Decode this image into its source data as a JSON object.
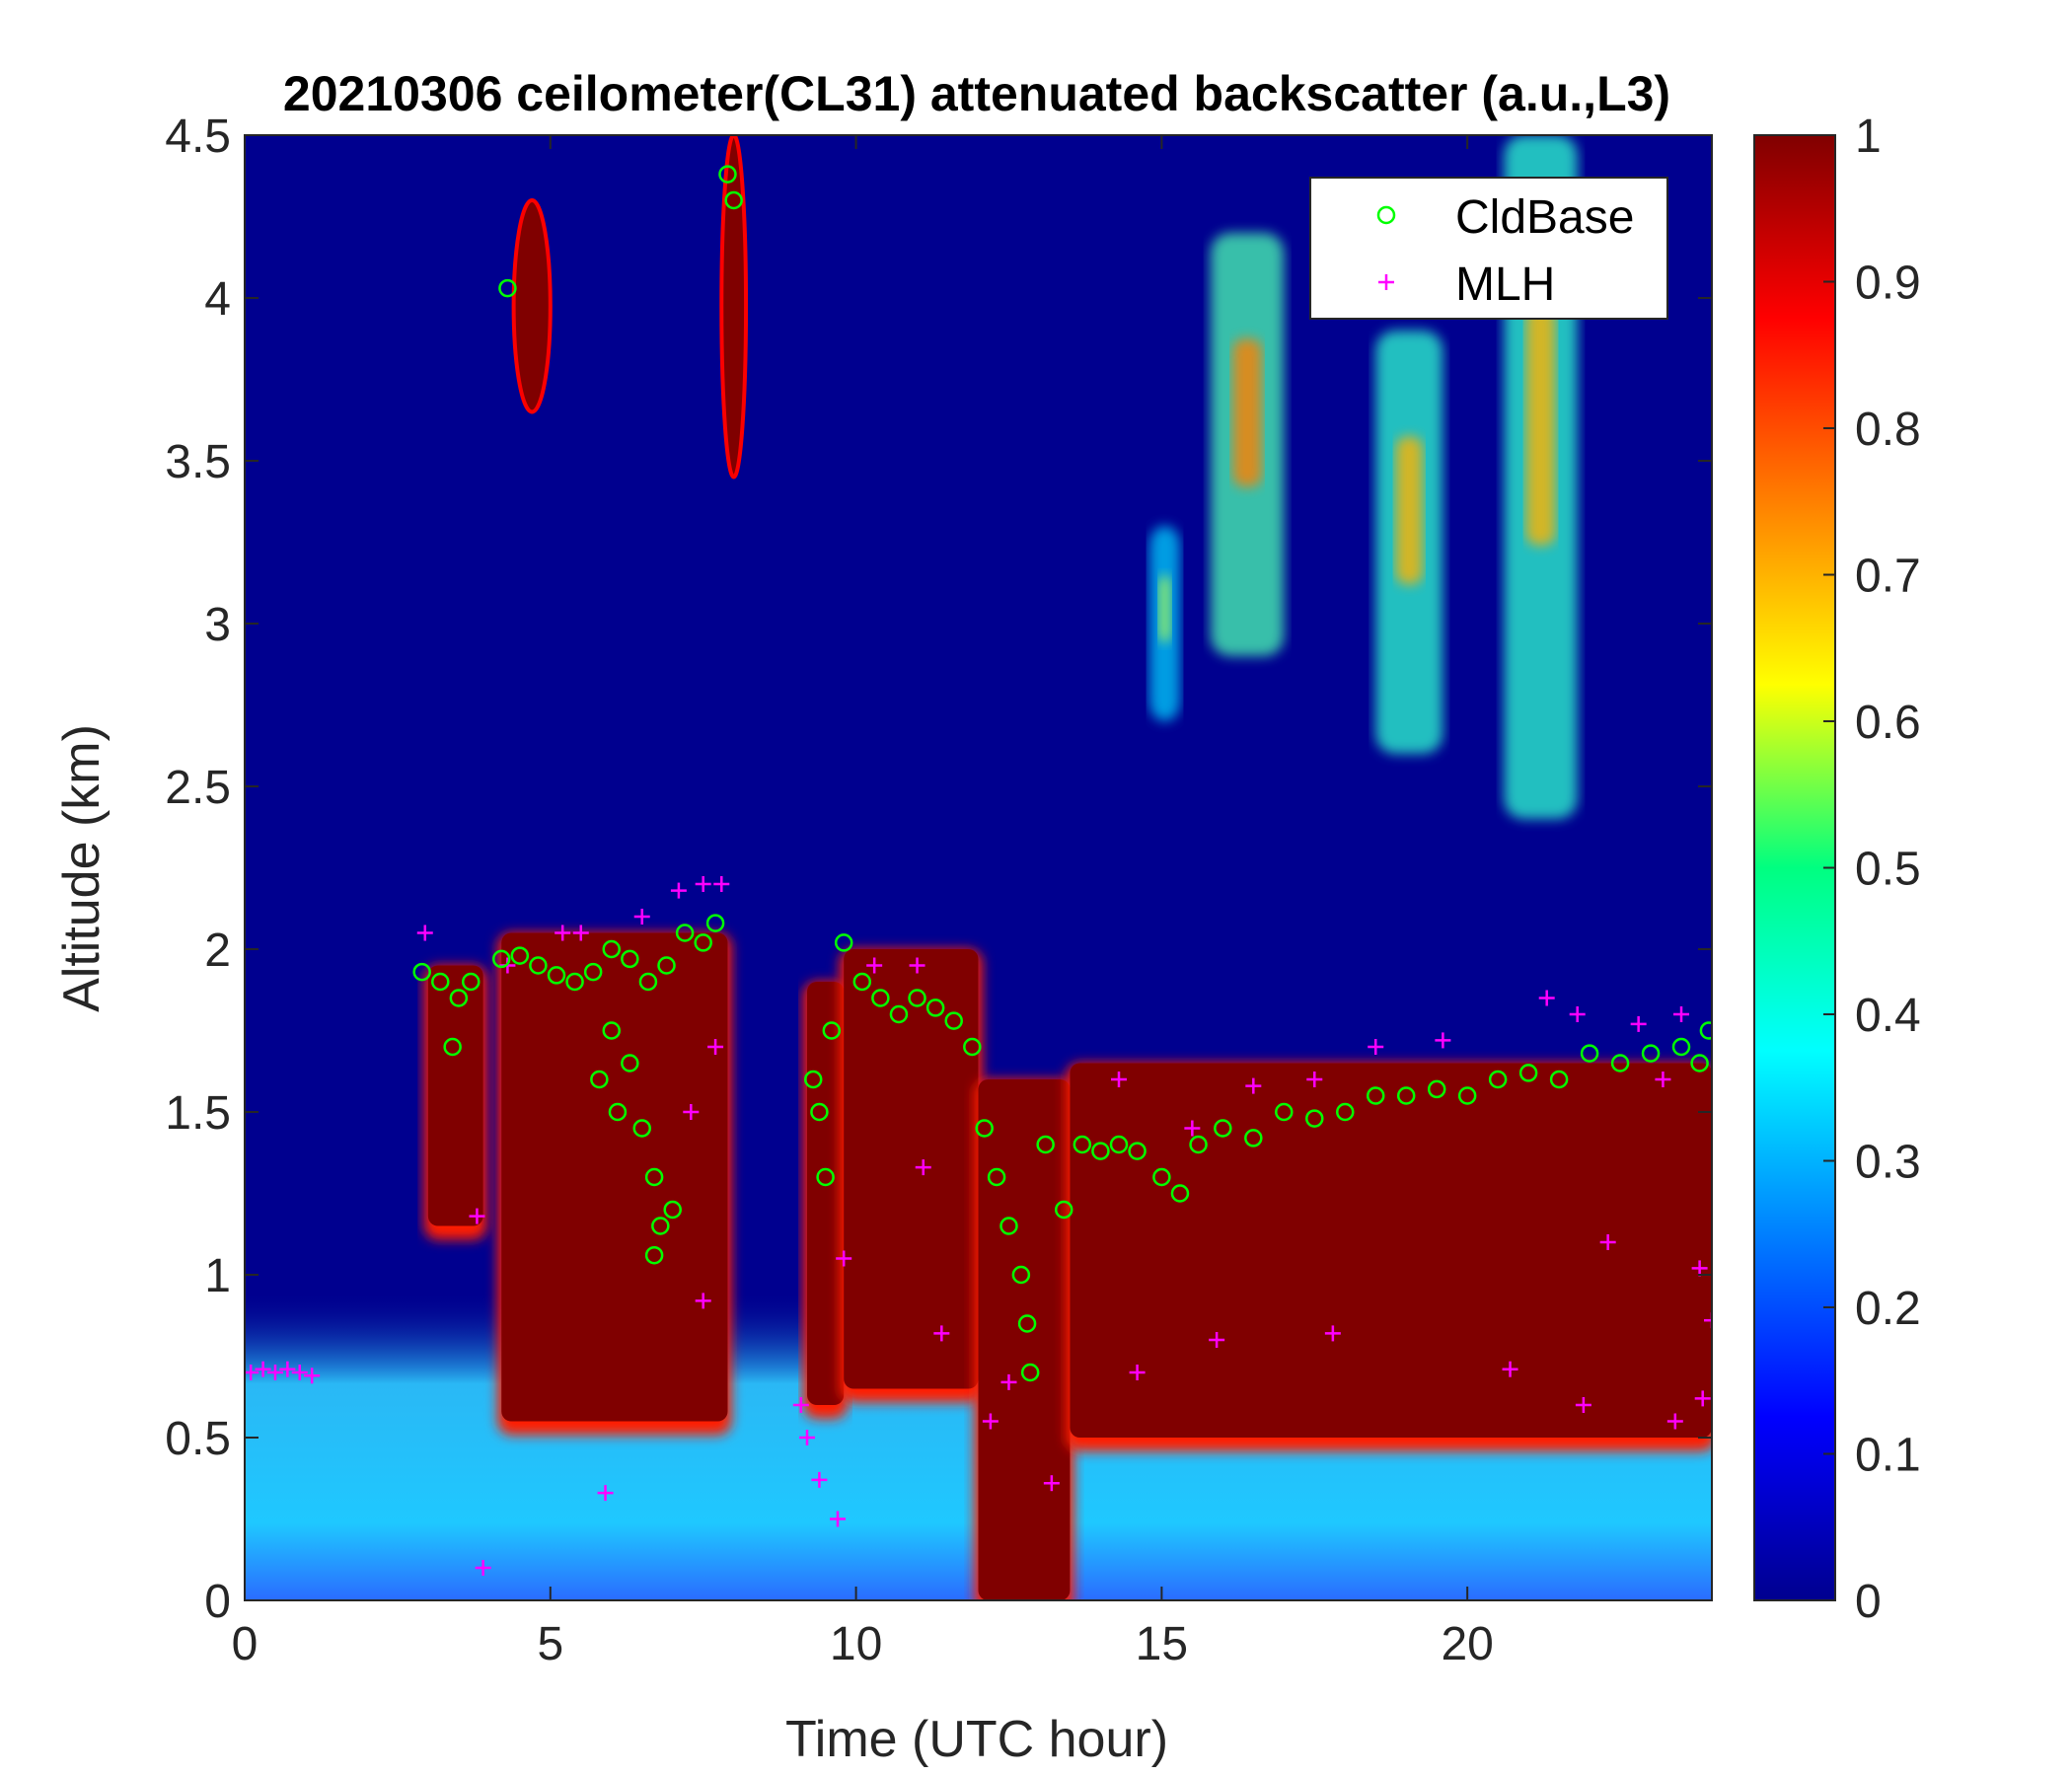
{
  "chart_data": {
    "type": "heatmap",
    "title": "20210306 ceilometer(CL31) attenuated backscatter (a.u.,L3)",
    "xlabel": "Time (UTC hour)",
    "ylabel": "Altitude (km)",
    "xlim": [
      0,
      24
    ],
    "ylim": [
      0,
      4.5
    ],
    "xticks": [
      0,
      5,
      10,
      15,
      20
    ],
    "xtick_labels": [
      "0",
      "5",
      "10",
      "15",
      "20"
    ],
    "yticks": [
      0,
      0.5,
      1,
      1.5,
      2,
      2.5,
      3,
      3.5,
      4,
      4.5
    ],
    "ytick_labels": [
      "0",
      "0.5",
      "1",
      "1.5",
      "2",
      "2.5",
      "3",
      "3.5",
      "4",
      "4.5"
    ],
    "colorbar": {
      "colormap": "jet",
      "range": [
        0,
        1
      ],
      "ticks": [
        0,
        0.1,
        0.2,
        0.3,
        0.4,
        0.5,
        0.6,
        0.7,
        0.8,
        0.9,
        1
      ],
      "tick_labels": [
        "0",
        "0.1",
        "0.2",
        "0.3",
        "0.4",
        "0.5",
        "0.6",
        "0.7",
        "0.8",
        "0.9",
        "1"
      ]
    },
    "legend": {
      "placement": "top-right",
      "entries": [
        {
          "label": "CldBase",
          "marker": "circle",
          "color": "#00ff00"
        },
        {
          "label": "MLH",
          "marker": "plus",
          "color": "#ff00ff"
        }
      ]
    },
    "heatmap_regions": [
      {
        "kind": "surface_aerosol",
        "t0": 0,
        "t1": 24,
        "z0": 0,
        "z1": 0.95,
        "value": 0.32
      },
      {
        "kind": "dense_layer",
        "t0": 3.0,
        "t1": 3.9,
        "z0": 1.15,
        "z1": 1.95,
        "value": 1.0
      },
      {
        "kind": "dense_layer",
        "t0": 4.2,
        "t1": 7.9,
        "z0": 0.55,
        "z1": 2.05,
        "value": 1.0
      },
      {
        "kind": "dense_layer",
        "t0": 9.2,
        "t1": 9.8,
        "z0": 0.6,
        "z1": 1.9,
        "value": 1.0
      },
      {
        "kind": "dense_layer",
        "t0": 9.8,
        "t1": 12.0,
        "z0": 0.65,
        "z1": 2.0,
        "value": 1.0
      },
      {
        "kind": "dense_layer",
        "t0": 12.0,
        "t1": 13.5,
        "z0": 0.0,
        "z1": 1.6,
        "value": 1.0
      },
      {
        "kind": "dense_layer",
        "t0": 13.5,
        "t1": 24.0,
        "z0": 0.5,
        "z1": 1.65,
        "value": 1.0
      },
      {
        "kind": "elevated_cloud",
        "t0": 4.4,
        "t1": 5.0,
        "z0": 3.65,
        "z1": 4.3,
        "value": 1.0
      },
      {
        "kind": "elevated_cloud",
        "t0": 7.8,
        "t1": 8.2,
        "z0": 3.45,
        "z1": 4.5,
        "value": 1.0
      },
      {
        "kind": "aerosol_plume",
        "t0": 15.8,
        "t1": 17.0,
        "z0": 2.9,
        "z1": 4.2,
        "value": 0.75
      },
      {
        "kind": "aerosol_plume",
        "t0": 18.5,
        "t1": 19.6,
        "z0": 2.6,
        "z1": 3.9,
        "value": 0.7
      },
      {
        "kind": "aerosol_plume",
        "t0": 20.6,
        "t1": 21.8,
        "z0": 2.4,
        "z1": 4.5,
        "value": 0.7
      },
      {
        "kind": "aerosol_plume",
        "t0": 14.8,
        "t1": 15.3,
        "z0": 2.7,
        "z1": 3.3,
        "value": 0.55
      }
    ],
    "cldbase": [
      {
        "t": 2.9,
        "z": 1.93
      },
      {
        "t": 3.2,
        "z": 1.9
      },
      {
        "t": 3.5,
        "z": 1.85
      },
      {
        "t": 3.7,
        "z": 1.9
      },
      {
        "t": 3.4,
        "z": 1.7
      },
      {
        "t": 4.2,
        "z": 1.97
      },
      {
        "t": 4.5,
        "z": 1.98
      },
      {
        "t": 4.8,
        "z": 1.95
      },
      {
        "t": 5.1,
        "z": 1.92
      },
      {
        "t": 5.4,
        "z": 1.9
      },
      {
        "t": 5.7,
        "z": 1.93
      },
      {
        "t": 6.0,
        "z": 2.0
      },
      {
        "t": 6.3,
        "z": 1.97
      },
      {
        "t": 6.6,
        "z": 1.9
      },
      {
        "t": 6.9,
        "z": 1.95
      },
      {
        "t": 7.2,
        "z": 2.05
      },
      {
        "t": 7.5,
        "z": 2.02
      },
      {
        "t": 7.7,
        "z": 2.08
      },
      {
        "t": 5.8,
        "z": 1.6
      },
      {
        "t": 6.0,
        "z": 1.75
      },
      {
        "t": 6.1,
        "z": 1.5
      },
      {
        "t": 6.3,
        "z": 1.65
      },
      {
        "t": 6.5,
        "z": 1.45
      },
      {
        "t": 6.7,
        "z": 1.3
      },
      {
        "t": 6.8,
        "z": 1.15
      },
      {
        "t": 6.7,
        "z": 1.06
      },
      {
        "t": 7.0,
        "z": 1.2
      },
      {
        "t": 4.3,
        "z": 4.03
      },
      {
        "t": 7.9,
        "z": 4.38
      },
      {
        "t": 8.0,
        "z": 4.3
      },
      {
        "t": 9.4,
        "z": 1.5
      },
      {
        "t": 9.3,
        "z": 1.6
      },
      {
        "t": 9.5,
        "z": 1.3
      },
      {
        "t": 9.6,
        "z": 1.75
      },
      {
        "t": 9.8,
        "z": 2.02
      },
      {
        "t": 10.1,
        "z": 1.9
      },
      {
        "t": 10.4,
        "z": 1.85
      },
      {
        "t": 10.7,
        "z": 1.8
      },
      {
        "t": 11.0,
        "z": 1.85
      },
      {
        "t": 11.3,
        "z": 1.82
      },
      {
        "t": 11.6,
        "z": 1.78
      },
      {
        "t": 11.9,
        "z": 1.7
      },
      {
        "t": 12.1,
        "z": 1.45
      },
      {
        "t": 12.3,
        "z": 1.3
      },
      {
        "t": 12.5,
        "z": 1.15
      },
      {
        "t": 12.7,
        "z": 1.0
      },
      {
        "t": 12.8,
        "z": 0.85
      },
      {
        "t": 12.85,
        "z": 0.7
      },
      {
        "t": 13.1,
        "z": 1.4
      },
      {
        "t": 13.4,
        "z": 1.2
      },
      {
        "t": 13.7,
        "z": 1.4
      },
      {
        "t": 14.0,
        "z": 1.38
      },
      {
        "t": 14.3,
        "z": 1.4
      },
      {
        "t": 14.6,
        "z": 1.38
      },
      {
        "t": 15.0,
        "z": 1.3
      },
      {
        "t": 15.3,
        "z": 1.25
      },
      {
        "t": 15.6,
        "z": 1.4
      },
      {
        "t": 16.0,
        "z": 1.45
      },
      {
        "t": 16.5,
        "z": 1.42
      },
      {
        "t": 17.0,
        "z": 1.5
      },
      {
        "t": 17.5,
        "z": 1.48
      },
      {
        "t": 18.0,
        "z": 1.5
      },
      {
        "t": 18.5,
        "z": 1.55
      },
      {
        "t": 19.0,
        "z": 1.55
      },
      {
        "t": 19.5,
        "z": 1.57
      },
      {
        "t": 20.0,
        "z": 1.55
      },
      {
        "t": 20.5,
        "z": 1.6
      },
      {
        "t": 21.0,
        "z": 1.62
      },
      {
        "t": 21.5,
        "z": 1.6
      },
      {
        "t": 22.0,
        "z": 1.68
      },
      {
        "t": 22.5,
        "z": 1.65
      },
      {
        "t": 23.0,
        "z": 1.68
      },
      {
        "t": 23.5,
        "z": 1.7
      },
      {
        "t": 23.8,
        "z": 1.65
      },
      {
        "t": 23.95,
        "z": 1.75
      }
    ],
    "mlh": [
      {
        "t": 0.1,
        "z": 0.7
      },
      {
        "t": 0.3,
        "z": 0.71
      },
      {
        "t": 0.5,
        "z": 0.7
      },
      {
        "t": 0.7,
        "z": 0.71
      },
      {
        "t": 0.9,
        "z": 0.7
      },
      {
        "t": 1.1,
        "z": 0.69
      },
      {
        "t": 2.95,
        "z": 2.05
      },
      {
        "t": 3.8,
        "z": 1.18
      },
      {
        "t": 3.9,
        "z": 0.1
      },
      {
        "t": 4.3,
        "z": 1.95
      },
      {
        "t": 5.2,
        "z": 2.05
      },
      {
        "t": 5.5,
        "z": 2.05
      },
      {
        "t": 5.9,
        "z": 0.33
      },
      {
        "t": 6.5,
        "z": 2.1
      },
      {
        "t": 7.1,
        "z": 2.18
      },
      {
        "t": 7.5,
        "z": 2.2
      },
      {
        "t": 7.8,
        "z": 2.2
      },
      {
        "t": 7.3,
        "z": 1.5
      },
      {
        "t": 7.7,
        "z": 1.7
      },
      {
        "t": 7.5,
        "z": 0.92
      },
      {
        "t": 9.1,
        "z": 0.6
      },
      {
        "t": 9.2,
        "z": 0.5
      },
      {
        "t": 9.4,
        "z": 0.37
      },
      {
        "t": 9.7,
        "z": 0.25
      },
      {
        "t": 9.8,
        "z": 1.05
      },
      {
        "t": 10.3,
        "z": 1.95
      },
      {
        "t": 11.0,
        "z": 1.95
      },
      {
        "t": 11.4,
        "z": 0.82
      },
      {
        "t": 11.1,
        "z": 1.33
      },
      {
        "t": 12.2,
        "z": 0.55
      },
      {
        "t": 12.5,
        "z": 0.67
      },
      {
        "t": 13.2,
        "z": 0.36
      },
      {
        "t": 14.3,
        "z": 1.6
      },
      {
        "t": 14.6,
        "z": 0.7
      },
      {
        "t": 15.5,
        "z": 1.45
      },
      {
        "t": 15.9,
        "z": 0.8
      },
      {
        "t": 16.5,
        "z": 1.58
      },
      {
        "t": 17.5,
        "z": 1.6
      },
      {
        "t": 17.8,
        "z": 0.82
      },
      {
        "t": 18.5,
        "z": 1.7
      },
      {
        "t": 19.6,
        "z": 1.72
      },
      {
        "t": 20.7,
        "z": 0.71
      },
      {
        "t": 21.3,
        "z": 1.85
      },
      {
        "t": 21.8,
        "z": 1.8
      },
      {
        "t": 21.9,
        "z": 0.6
      },
      {
        "t": 22.3,
        "z": 1.1
      },
      {
        "t": 22.8,
        "z": 1.77
      },
      {
        "t": 23.2,
        "z": 1.6
      },
      {
        "t": 23.5,
        "z": 1.8
      },
      {
        "t": 23.4,
        "z": 0.55
      },
      {
        "t": 23.8,
        "z": 1.02
      },
      {
        "t": 23.85,
        "z": 0.62
      },
      {
        "t": 24.0,
        "z": 0.86
      }
    ]
  }
}
